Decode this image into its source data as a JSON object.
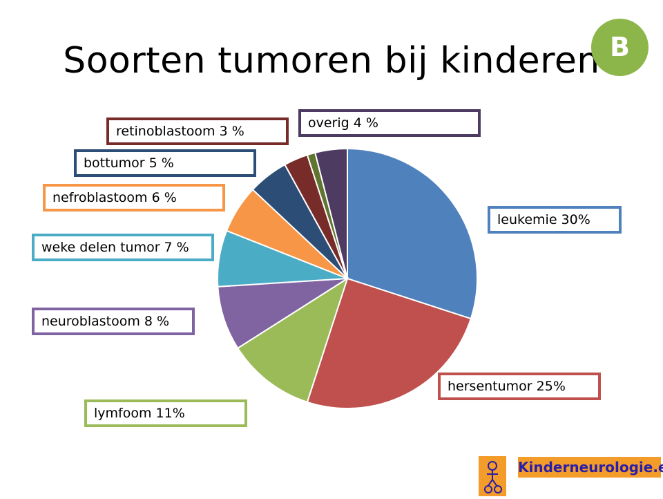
{
  "title": "Soorten tumoren bij kinderen",
  "badge": "B",
  "logo_text": "Kinderneurologie.eu",
  "chart_data": {
    "type": "pie",
    "title": "Soorten tumoren bij kinderen",
    "slices": [
      {
        "label": "leukemie 30%",
        "value": 30,
        "color": "#4f81bd"
      },
      {
        "label": "hersentumor 25%",
        "value": 25,
        "color": "#c0504d"
      },
      {
        "label": "lymfoom 11%",
        "value": 11,
        "color": "#9bbb59"
      },
      {
        "label": "neuroblastoom 8 %",
        "value": 8,
        "color": "#8064a2"
      },
      {
        "label": "weke delen tumor 7 %",
        "value": 7,
        "color": "#4bacc6"
      },
      {
        "label": "nefroblastoom 6 %",
        "value": 6,
        "color": "#f79646"
      },
      {
        "label": "bottumor 5 %",
        "value": 5,
        "color": "#2c4d75"
      },
      {
        "label": "retinoblastoom 3 %",
        "value": 3,
        "color": "#772c2a"
      },
      {
        "label": "",
        "value": 1,
        "color": "#5f7530"
      },
      {
        "label": "overig 4 %",
        "value": 4,
        "color": "#4d3b62"
      }
    ]
  }
}
